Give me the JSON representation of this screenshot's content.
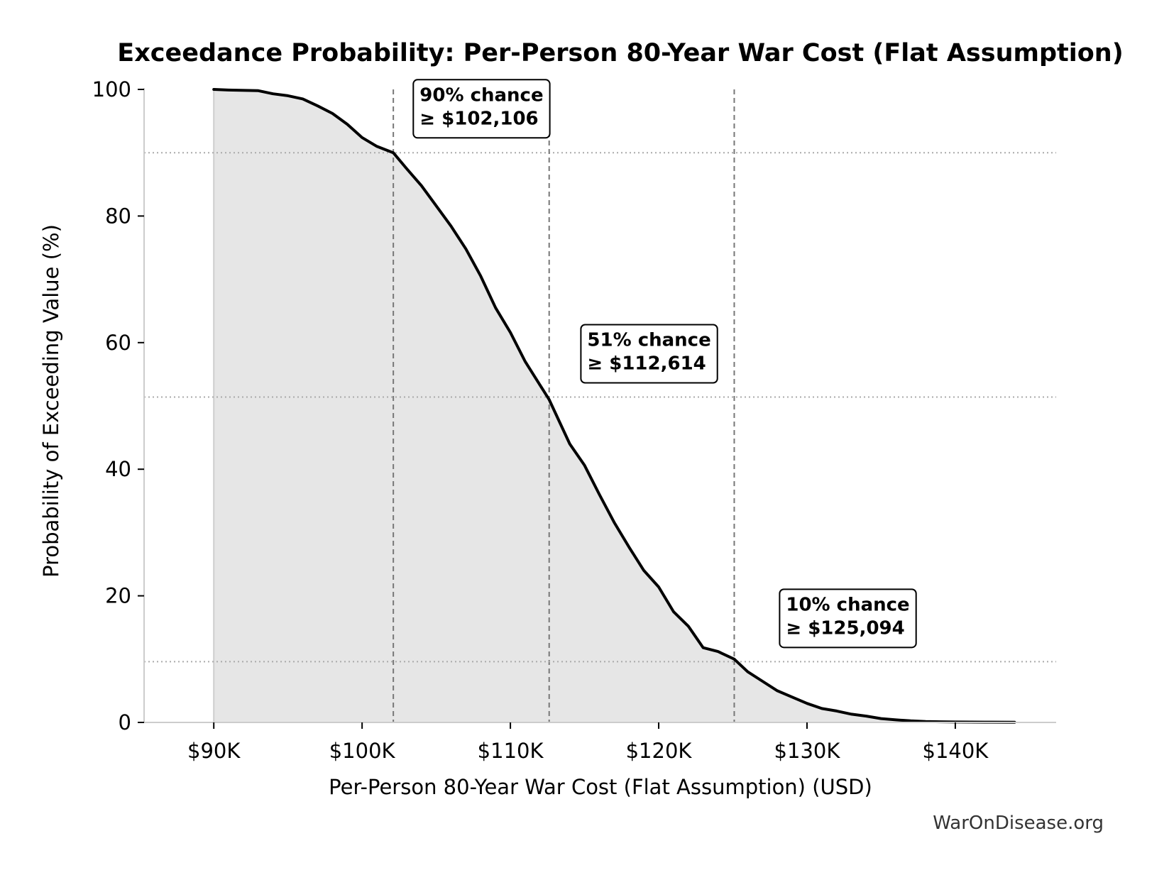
{
  "chart_data": {
    "type": "area",
    "title": "Exceedance Probability: Per-Person 80-Year War Cost (Flat Assumption)",
    "xlabel": "Per-Person 80-Year War Cost (Flat Assumption) (USD)",
    "ylabel": "Probability of Exceeding Value (%)",
    "xlim": [
      85300,
      146800
    ],
    "ylim": [
      0,
      100
    ],
    "x_ticks": [
      {
        "value": 90000,
        "label": "$90K"
      },
      {
        "value": 100000,
        "label": "$100K"
      },
      {
        "value": 110000,
        "label": "$110K"
      },
      {
        "value": 120000,
        "label": "$120K"
      },
      {
        "value": 130000,
        "label": "$130K"
      },
      {
        "value": 140000,
        "label": "$140K"
      }
    ],
    "y_ticks": [
      {
        "value": 0,
        "label": "0"
      },
      {
        "value": 20,
        "label": "20"
      },
      {
        "value": 40,
        "label": "40"
      },
      {
        "value": 60,
        "label": "60"
      },
      {
        "value": 80,
        "label": "80"
      },
      {
        "value": 100,
        "label": "100"
      }
    ],
    "grid": false,
    "series": [
      {
        "x": [
          90000,
          91000,
          93000,
          94000,
          95000,
          96000,
          97000,
          98000,
          99000,
          100000,
          101000,
          102106,
          103000,
          104000,
          105000,
          106000,
          107000,
          108000,
          109000,
          110000,
          111000,
          112614,
          114000,
          115000,
          116000,
          117000,
          118000,
          119000,
          120000,
          121000,
          122000,
          123000,
          124000,
          125094,
          126000,
          127000,
          128000,
          129000,
          130000,
          131000,
          132000,
          133000,
          134000,
          135000,
          136000,
          137000,
          138000,
          139000,
          140000,
          142000,
          144000
        ],
        "y": [
          100,
          99.9,
          99.8,
          99.3,
          99.0,
          98.5,
          97.4,
          96.2,
          94.5,
          92.4,
          91.0,
          90.0,
          87.5,
          84.8,
          81.6,
          78.4,
          74.8,
          70.5,
          65.5,
          61.6,
          57.0,
          51.0,
          44.0,
          40.6,
          36.0,
          31.6,
          27.7,
          24.0,
          21.4,
          17.5,
          15.2,
          11.8,
          11.2,
          10.0,
          8.0,
          6.5,
          5.0,
          4.0,
          3.0,
          2.2,
          1.8,
          1.3,
          1.0,
          0.6,
          0.4,
          0.25,
          0.15,
          0.1,
          0.07,
          0.04,
          0.02
        ]
      }
    ],
    "threshold_lines": [
      {
        "x": 102106,
        "y": 90
      },
      {
        "x": 112614,
        "y": 51.4
      },
      {
        "x": 125094,
        "y": 9.6
      }
    ],
    "annotations": [
      {
        "x": 108000,
        "y": 97.5,
        "line1": "90% chance",
        "line2": "≥ $102,106"
      },
      {
        "x": 119300,
        "y": 58.8,
        "line1": "51% chance",
        "line2": "≥ $112,614"
      },
      {
        "x": 132700,
        "y": 17.0,
        "line1": "10% chance",
        "line2": "≥ $125,094"
      }
    ],
    "colors": {
      "line": "#000000",
      "fill": "#e6e6e6",
      "threshold": "#777777",
      "axis": "#cccccc"
    }
  },
  "watermark": "WarOnDisease.org"
}
